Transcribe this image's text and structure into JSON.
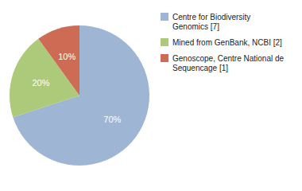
{
  "chart_data": {
    "type": "pie",
    "categories": [
      "Centre for Biodiversity\nGenomics [7]",
      "Mined from GenBank, NCBI [2]",
      "Genoscope, Centre National de\nSequencage [1]"
    ],
    "values": [
      70,
      20,
      10
    ],
    "value_labels": [
      "70%",
      "20%",
      "10%"
    ],
    "colors": [
      "#9eb6d4",
      "#adc97a",
      "#cd6b55"
    ],
    "data_labels": true,
    "legend": "right"
  }
}
